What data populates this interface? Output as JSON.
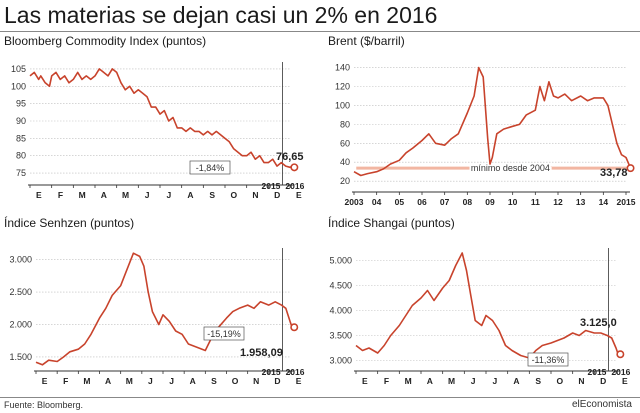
{
  "title": "Las materias se dejan casi un 2% en 2016",
  "footer": {
    "source": "Fuente: Bloomberg.",
    "brand": "elEconomista"
  },
  "colors": {
    "line": "#c8432c",
    "band": "#f2b6a2",
    "grid": "#bdbdbd",
    "axis": "#333333"
  },
  "chart_data": [
    {
      "type": "line",
      "title": "Bloomberg Commodity Index (puntos)",
      "x_labels": [
        "E",
        "F",
        "M",
        "A",
        "M",
        "J",
        "J",
        "A",
        "S",
        "O",
        "N",
        "D",
        "E"
      ],
      "year_labels": [
        "2015",
        "2016"
      ],
      "yticks": [
        75,
        80,
        85,
        90,
        95,
        100,
        105
      ],
      "ylim": [
        73,
        107
      ],
      "grid": true,
      "series": [
        {
          "x": [
            0,
            0.2,
            0.4,
            0.5,
            0.7,
            0.9,
            1.0,
            1.2,
            1.4,
            1.6,
            1.8,
            2.0,
            2.2,
            2.4,
            2.6,
            2.8,
            3.0,
            3.2,
            3.4,
            3.6,
            3.8,
            4.0,
            4.2,
            4.4,
            4.6,
            4.8,
            5.0,
            5.2,
            5.4,
            5.6,
            5.8,
            6.0,
            6.2,
            6.4,
            6.6,
            6.8,
            7.0,
            7.2,
            7.4,
            7.6,
            7.8,
            8.0,
            8.2,
            8.4,
            8.6,
            8.8,
            9.0,
            9.2,
            9.4,
            9.6,
            9.8,
            10.0,
            10.2,
            10.4,
            10.6,
            10.8,
            11.0,
            11.2,
            11.4,
            11.6,
            11.8,
            12.0,
            12.1,
            12.2
          ],
          "y": [
            103,
            104,
            102,
            103,
            101,
            100,
            103,
            104,
            102,
            103,
            101,
            102,
            104,
            102,
            103,
            102,
            103,
            105,
            104,
            103,
            105,
            104,
            101,
            99,
            100,
            98,
            99,
            98,
            97,
            94,
            94,
            92,
            93,
            90,
            91,
            88,
            88,
            87,
            88,
            87,
            87,
            86,
            87,
            86,
            87,
            86,
            85,
            84,
            82,
            81,
            80,
            80,
            81,
            79,
            80,
            78,
            78,
            79,
            77,
            78,
            77,
            76.65,
            77,
            76.65
          ]
        }
      ],
      "annotations": {
        "change": "-1,84%",
        "end_value": "76,65"
      }
    },
    {
      "type": "line",
      "title": "Brent ($/barril)",
      "x_labels": [
        "2003",
        "04",
        "05",
        "06",
        "07",
        "08",
        "09",
        "10",
        "11",
        "12",
        "13",
        "14",
        "2015"
      ],
      "yticks": [
        20,
        40,
        60,
        80,
        100,
        120,
        140
      ],
      "ylim": [
        17,
        148
      ],
      "grid": true,
      "series": [
        {
          "x": [
            0,
            0.3,
            0.6,
            1.0,
            1.3,
            1.6,
            2.0,
            2.3,
            2.6,
            3.0,
            3.3,
            3.6,
            4.0,
            4.3,
            4.6,
            5.0,
            5.3,
            5.5,
            5.7,
            5.9,
            6.0,
            6.1,
            6.3,
            6.6,
            7.0,
            7.3,
            7.6,
            8.0,
            8.2,
            8.4,
            8.6,
            8.8,
            9.0,
            9.3,
            9.6,
            10.0,
            10.3,
            10.6,
            11.0,
            11.2,
            11.4,
            11.6,
            11.8,
            12.0,
            12.2
          ],
          "y": [
            30,
            26,
            28,
            30,
            33,
            38,
            42,
            50,
            55,
            63,
            70,
            60,
            58,
            65,
            70,
            92,
            110,
            140,
            130,
            65,
            38,
            45,
            70,
            75,
            78,
            80,
            90,
            95,
            120,
            105,
            125,
            110,
            108,
            112,
            105,
            110,
            105,
            108,
            108,
            100,
            80,
            60,
            48,
            45,
            33.78
          ]
        }
      ],
      "annotations": {
        "min_label": "mínimo desde 2004",
        "end_value": "33,78"
      }
    },
    {
      "type": "line",
      "title": "Índice Senhzen (puntos)",
      "x_labels": [
        "E",
        "F",
        "M",
        "A",
        "M",
        "J",
        "J",
        "A",
        "S",
        "O",
        "N",
        "D",
        "E"
      ],
      "year_labels": [
        "2015",
        "2016"
      ],
      "yticks": [
        1500,
        2000,
        2500,
        3000
      ],
      "yticklabels": [
        "1.500",
        "2.000",
        "2.500",
        "3.000"
      ],
      "ylim": [
        1330,
        3180
      ],
      "grid": true,
      "series": [
        {
          "x": [
            0,
            0.3,
            0.6,
            1.0,
            1.3,
            1.6,
            2.0,
            2.3,
            2.6,
            3.0,
            3.3,
            3.6,
            4.0,
            4.3,
            4.6,
            4.9,
            5.1,
            5.3,
            5.5,
            5.8,
            6.0,
            6.3,
            6.6,
            6.9,
            7.2,
            7.6,
            8.0,
            8.3,
            8.6,
            9.0,
            9.3,
            9.6,
            10.0,
            10.3,
            10.6,
            11.0,
            11.3,
            11.6,
            11.8,
            12.0,
            12.1,
            12.2
          ],
          "y": [
            1420,
            1380,
            1450,
            1430,
            1500,
            1580,
            1620,
            1700,
            1850,
            2100,
            2250,
            2450,
            2600,
            2850,
            3100,
            3050,
            2900,
            2500,
            2200,
            2000,
            2150,
            2050,
            1900,
            1850,
            1700,
            1650,
            1600,
            1800,
            1950,
            2100,
            2200,
            2250,
            2300,
            2250,
            2350,
            2300,
            2350,
            2300,
            2250,
            2050,
            1958.09,
            1958.09
          ]
        }
      ],
      "annotations": {
        "change": "-15,19%",
        "end_value": "1.958,09"
      }
    },
    {
      "type": "line",
      "title": "Índice Shangai (puntos)",
      "x_labels": [
        "E",
        "F",
        "M",
        "A",
        "M",
        "J",
        "J",
        "A",
        "S",
        "O",
        "N",
        "D",
        "E"
      ],
      "year_labels": [
        "2015",
        "2016"
      ],
      "yticks": [
        3000,
        3500,
        4000,
        4500,
        5000
      ],
      "yticklabels": [
        "3.000",
        "3.500",
        "4.000",
        "4.500",
        "5.000"
      ],
      "ylim": [
        2850,
        5250
      ],
      "grid": true,
      "series": [
        {
          "x": [
            0,
            0.3,
            0.6,
            1.0,
            1.3,
            1.6,
            2.0,
            2.3,
            2.6,
            3.0,
            3.3,
            3.6,
            4.0,
            4.3,
            4.6,
            4.9,
            5.1,
            5.3,
            5.5,
            5.8,
            6.0,
            6.3,
            6.6,
            6.9,
            7.2,
            7.6,
            8.0,
            8.3,
            8.6,
            9.0,
            9.3,
            9.6,
            10.0,
            10.3,
            10.6,
            11.0,
            11.3,
            11.6,
            11.8,
            12.0,
            12.1,
            12.2
          ],
          "y": [
            3300,
            3200,
            3250,
            3150,
            3300,
            3500,
            3700,
            3900,
            4100,
            4250,
            4400,
            4200,
            4450,
            4600,
            4900,
            5150,
            4800,
            4300,
            3800,
            3700,
            3900,
            3800,
            3600,
            3300,
            3200,
            3100,
            3050,
            3200,
            3300,
            3350,
            3400,
            3450,
            3550,
            3500,
            3600,
            3550,
            3550,
            3500,
            3450,
            3250,
            3125,
            3125
          ]
        }
      ],
      "annotations": {
        "change": "-11,36%",
        "end_value": "3.125,0"
      }
    }
  ]
}
